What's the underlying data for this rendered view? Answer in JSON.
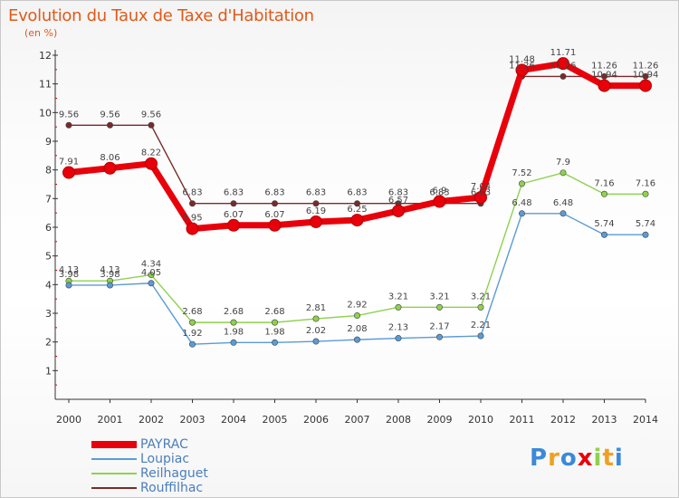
{
  "chart_data": {
    "type": "line",
    "title": "Evolution du Taux de Taxe d'Habitation",
    "subtitle": "(en %)",
    "x": [
      "2000",
      "2001",
      "2002",
      "2003",
      "2004",
      "2005",
      "2006",
      "2007",
      "2008",
      "2009",
      "2010",
      "2011",
      "2012",
      "2013",
      "2014"
    ],
    "ylim": [
      1,
      12
    ],
    "yticks": [
      1,
      2,
      3,
      4,
      5,
      6,
      7,
      8,
      9,
      10,
      11,
      12
    ],
    "grid": false,
    "legend_position": "bottom-left",
    "series": [
      {
        "name": "PAYRAC",
        "color": "#e8000b",
        "values": [
          7.91,
          8.06,
          8.22,
          5.95,
          6.07,
          6.07,
          6.19,
          6.25,
          6.57,
          6.9,
          7.04,
          11.48,
          11.71,
          10.94,
          10.94
        ],
        "labels": [
          "7.91",
          "8.06",
          "8.22",
          "5.95",
          "6.07",
          "6.07",
          "6.19",
          "6.25",
          "6.57",
          "6.9",
          "7.04",
          "11.48",
          "11.71",
          "10.94",
          "10.94"
        ]
      },
      {
        "name": "Loupiac",
        "color": "#5b9bd5",
        "values": [
          3.98,
          3.98,
          4.05,
          1.92,
          1.98,
          1.98,
          2.02,
          2.08,
          2.13,
          2.17,
          2.21,
          6.48,
          6.48,
          5.74,
          5.74
        ],
        "labels": [
          "3.98",
          "3.98",
          "4.05",
          "1.92",
          "1.98",
          "1.98",
          "2.02",
          "2.08",
          "2.13",
          "2.17",
          "2.21",
          "6.48",
          "6.48",
          "5.74",
          "5.74"
        ]
      },
      {
        "name": "Reilhaguet",
        "color": "#8fd14f",
        "values": [
          4.13,
          4.13,
          4.34,
          2.68,
          2.68,
          2.68,
          2.81,
          2.92,
          3.21,
          3.21,
          3.21,
          7.52,
          7.9,
          7.16,
          7.16
        ],
        "labels": [
          "4.13",
          "4.13",
          "4.34",
          "2.68",
          "2.68",
          "2.68",
          "2.81",
          "2.92",
          "3.21",
          "3.21",
          "3.21",
          "7.52",
          "7.9",
          "7.16",
          "7.16"
        ]
      },
      {
        "name": "Rouffilhac",
        "color": "#7a2a2a",
        "values": [
          9.56,
          9.56,
          9.56,
          6.83,
          6.83,
          6.83,
          6.83,
          6.83,
          6.83,
          6.83,
          6.83,
          11.26,
          11.26,
          11.26,
          11.26
        ],
        "labels": [
          "9.56",
          "9.56",
          "9.56",
          "6.83",
          "6.83",
          "6.83",
          "6.83",
          "6.83",
          "6.83",
          "6.83",
          "6.83",
          "11.26",
          "11.26",
          "11.26",
          "11.26"
        ]
      }
    ]
  },
  "logo": {
    "text_letters": [
      "P",
      "r",
      "o",
      "x",
      "i",
      "t",
      "i"
    ],
    "colors": [
      "#3a8ad8",
      "#f0a020",
      "#3a8ad8",
      "#e8000b",
      "#8fd14f",
      "#f0a020",
      "#3a8ad8"
    ]
  }
}
